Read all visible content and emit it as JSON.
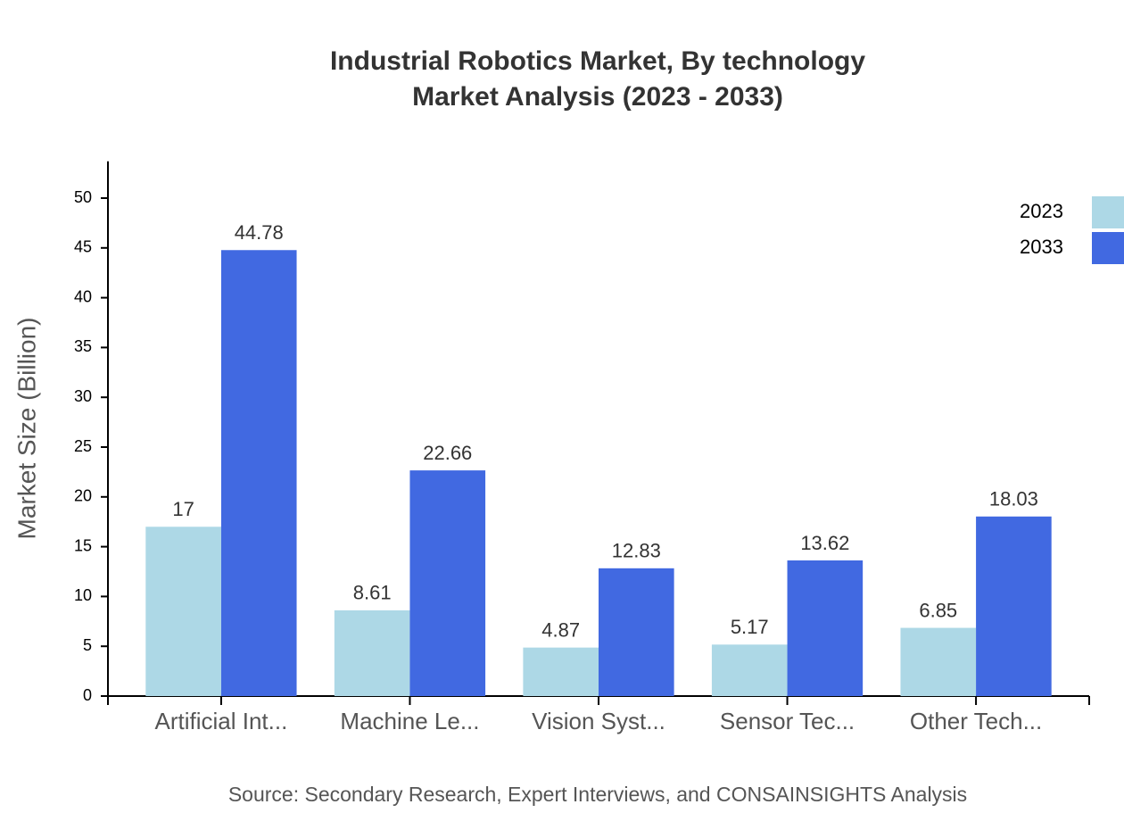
{
  "chart_data": {
    "type": "bar",
    "title": "Industrial Robotics Market, By technology",
    "subtitle": "Market Analysis (2023 - 2033)",
    "y_label": "Market Size (Billion)",
    "source": "Source: Secondary Research, Expert Interviews, and CONSAINSIGHTS Analysis",
    "categories": [
      "Artificial Int...",
      "Machine Le...",
      "Vision Syst...",
      "Sensor Tec...",
      "Other Tech..."
    ],
    "series": [
      {
        "name": "2023",
        "color": "#add8e6",
        "values": [
          17,
          8.61,
          4.87,
          5.17,
          6.85
        ]
      },
      {
        "name": "2033",
        "color": "#4169e1",
        "values": [
          44.78,
          22.66,
          12.83,
          13.62,
          18.03
        ]
      }
    ],
    "ylim": [
      0,
      53.7
    ],
    "yticks": [
      0,
      5,
      10,
      15,
      20,
      25,
      30,
      35,
      40,
      45,
      50
    ],
    "legend": "top-right"
  }
}
